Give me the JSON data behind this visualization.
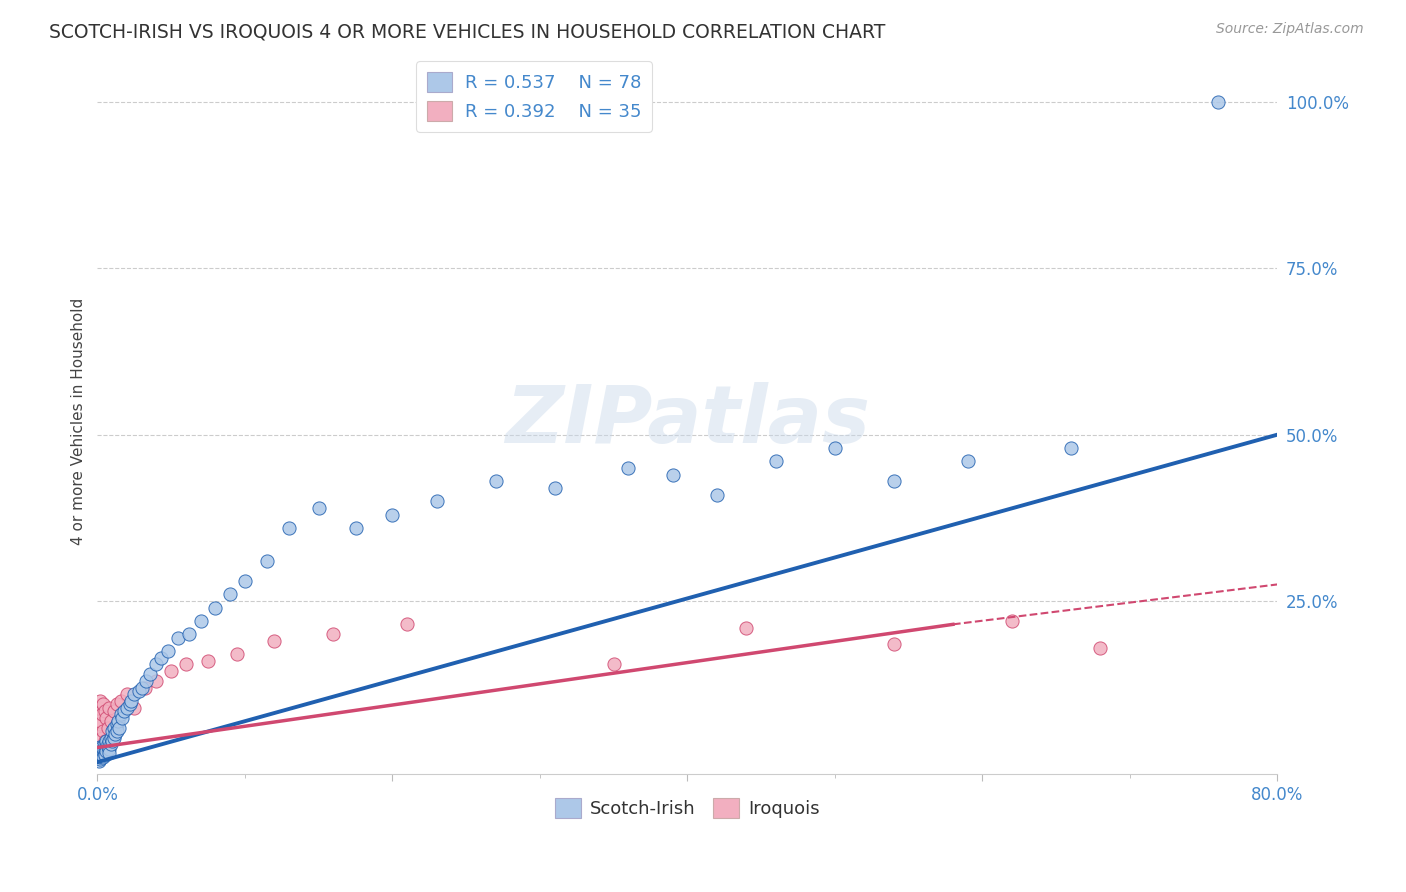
{
  "title": "SCOTCH-IRISH VS IROQUOIS 4 OR MORE VEHICLES IN HOUSEHOLD CORRELATION CHART",
  "source": "Source: ZipAtlas.com",
  "ylabel": "4 or more Vehicles in Household",
  "xlim": [
    0,
    0.8
  ],
  "ylim": [
    -0.01,
    1.05
  ],
  "grid_color": "#cccccc",
  "background_color": "#ffffff",
  "scotch_irish_color": "#adc8e8",
  "iroquois_color": "#f2afc0",
  "scotch_irish_line_color": "#2060b0",
  "iroquois_line_color": "#d04870",
  "legend_r_scotch": "R = 0.537",
  "legend_n_scotch": "N = 78",
  "legend_r_iroquois": "R = 0.392",
  "legend_n_iroquois": "N = 35",
  "watermark_text": "ZIPatlas",
  "si_line_x0": 0.0,
  "si_line_y0": 0.008,
  "si_line_x1": 0.8,
  "si_line_y1": 0.5,
  "iq_line_x0": 0.0,
  "iq_line_y0": 0.03,
  "iq_line_x1_solid": 0.58,
  "iq_line_y1_solid": 0.215,
  "iq_line_x1_dash": 0.8,
  "iq_line_y1_dash": 0.275,
  "scotch_irish_x": [
    0.001,
    0.001,
    0.001,
    0.001,
    0.001,
    0.002,
    0.002,
    0.002,
    0.002,
    0.002,
    0.002,
    0.003,
    0.003,
    0.003,
    0.003,
    0.004,
    0.004,
    0.004,
    0.005,
    0.005,
    0.005,
    0.005,
    0.006,
    0.006,
    0.006,
    0.007,
    0.007,
    0.008,
    0.008,
    0.008,
    0.009,
    0.009,
    0.01,
    0.01,
    0.011,
    0.011,
    0.012,
    0.013,
    0.013,
    0.014,
    0.015,
    0.016,
    0.017,
    0.018,
    0.02,
    0.022,
    0.023,
    0.025,
    0.028,
    0.03,
    0.033,
    0.036,
    0.04,
    0.043,
    0.048,
    0.055,
    0.062,
    0.07,
    0.08,
    0.09,
    0.1,
    0.115,
    0.13,
    0.15,
    0.175,
    0.2,
    0.23,
    0.27,
    0.31,
    0.36,
    0.39,
    0.42,
    0.46,
    0.5,
    0.54,
    0.59,
    0.66,
    0.76
  ],
  "scotch_irish_y": [
    0.02,
    0.025,
    0.015,
    0.018,
    0.01,
    0.022,
    0.018,
    0.03,
    0.012,
    0.025,
    0.015,
    0.02,
    0.025,
    0.018,
    0.03,
    0.022,
    0.028,
    0.015,
    0.025,
    0.02,
    0.035,
    0.018,
    0.03,
    0.025,
    0.04,
    0.03,
    0.035,
    0.028,
    0.04,
    0.022,
    0.035,
    0.045,
    0.04,
    0.055,
    0.045,
    0.06,
    0.05,
    0.065,
    0.055,
    0.07,
    0.06,
    0.08,
    0.075,
    0.085,
    0.09,
    0.095,
    0.1,
    0.11,
    0.115,
    0.12,
    0.13,
    0.14,
    0.155,
    0.165,
    0.175,
    0.195,
    0.2,
    0.22,
    0.24,
    0.26,
    0.28,
    0.31,
    0.36,
    0.39,
    0.36,
    0.38,
    0.4,
    0.43,
    0.42,
    0.45,
    0.44,
    0.41,
    0.46,
    0.48,
    0.43,
    0.46,
    0.48,
    1.0
  ],
  "iroquois_x": [
    0.001,
    0.001,
    0.001,
    0.002,
    0.002,
    0.002,
    0.003,
    0.003,
    0.004,
    0.004,
    0.005,
    0.005,
    0.006,
    0.007,
    0.008,
    0.009,
    0.011,
    0.013,
    0.016,
    0.02,
    0.025,
    0.032,
    0.04,
    0.05,
    0.06,
    0.075,
    0.095,
    0.12,
    0.16,
    0.21,
    0.35,
    0.44,
    0.54,
    0.62,
    0.68
  ],
  "iroquois_y": [
    0.065,
    0.02,
    0.09,
    0.03,
    0.07,
    0.1,
    0.045,
    0.08,
    0.055,
    0.095,
    0.04,
    0.085,
    0.075,
    0.06,
    0.09,
    0.07,
    0.085,
    0.095,
    0.1,
    0.11,
    0.09,
    0.12,
    0.13,
    0.145,
    0.155,
    0.16,
    0.17,
    0.19,
    0.2,
    0.215,
    0.155,
    0.21,
    0.185,
    0.22,
    0.18
  ]
}
